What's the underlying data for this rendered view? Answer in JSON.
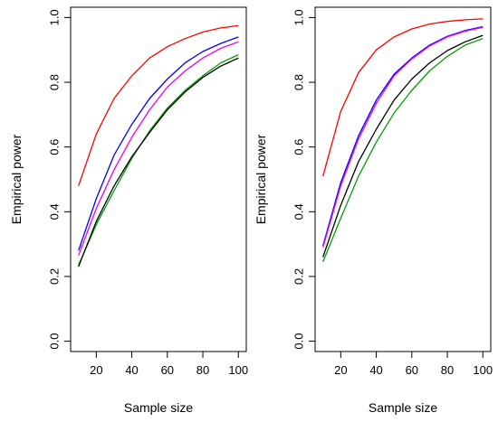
{
  "chart_data": [
    {
      "type": "line",
      "title": "",
      "xlabel": "Sample size",
      "ylabel": "Empirical power",
      "xlim": [
        10,
        100
      ],
      "ylim": [
        0.0,
        1.0
      ],
      "xticks": [
        20,
        40,
        60,
        80,
        100
      ],
      "yticks": [
        0.0,
        0.2,
        0.4,
        0.6,
        0.8,
        1.0
      ],
      "ytick_labels": [
        "0.0",
        "0.2",
        "0.4",
        "0.6",
        "0.8",
        "1.0"
      ],
      "grid": false,
      "x": [
        10,
        20,
        30,
        40,
        50,
        60,
        70,
        80,
        90,
        100
      ],
      "series": [
        {
          "color": "#ff0000",
          "values": [
            0.48,
            0.64,
            0.75,
            0.82,
            0.875,
            0.91,
            0.935,
            0.955,
            0.968,
            0.975
          ]
        },
        {
          "color": "#0000ff",
          "values": [
            0.28,
            0.44,
            0.575,
            0.67,
            0.75,
            0.81,
            0.86,
            0.895,
            0.92,
            0.94
          ]
        },
        {
          "color": "#ee00ee",
          "values": [
            0.265,
            0.41,
            0.53,
            0.63,
            0.715,
            0.785,
            0.835,
            0.875,
            0.905,
            0.925
          ]
        },
        {
          "color": "#00a000",
          "values": [
            0.235,
            0.36,
            0.465,
            0.565,
            0.65,
            0.72,
            0.775,
            0.82,
            0.86,
            0.885
          ]
        },
        {
          "color": "#000000",
          "values": [
            0.23,
            0.37,
            0.48,
            0.57,
            0.645,
            0.715,
            0.77,
            0.815,
            0.85,
            0.875
          ]
        }
      ]
    },
    {
      "type": "line",
      "title": "",
      "xlabel": "Sample size",
      "ylabel": "Empirical power",
      "xlim": [
        10,
        100
      ],
      "ylim": [
        0.0,
        1.0
      ],
      "xticks": [
        20,
        40,
        60,
        80,
        100
      ],
      "yticks": [
        0.0,
        0.2,
        0.4,
        0.6,
        0.8,
        1.0
      ],
      "ytick_labels": [
        "0.0",
        "0.2",
        "0.4",
        "0.6",
        "0.8",
        "1.0"
      ],
      "grid": false,
      "x": [
        10,
        20,
        30,
        40,
        50,
        60,
        70,
        80,
        90,
        100
      ],
      "series": [
        {
          "color": "#ff0000",
          "values": [
            0.51,
            0.71,
            0.83,
            0.9,
            0.94,
            0.965,
            0.98,
            0.988,
            0.993,
            0.996
          ]
        },
        {
          "color": "#0000ff",
          "values": [
            0.295,
            0.49,
            0.635,
            0.745,
            0.825,
            0.875,
            0.915,
            0.942,
            0.96,
            0.972
          ]
        },
        {
          "color": "#ee00ee",
          "values": [
            0.29,
            0.48,
            0.625,
            0.735,
            0.82,
            0.872,
            0.912,
            0.94,
            0.958,
            0.97
          ]
        },
        {
          "color": "#000000",
          "values": [
            0.26,
            0.42,
            0.555,
            0.655,
            0.745,
            0.81,
            0.86,
            0.898,
            0.925,
            0.945
          ]
        },
        {
          "color": "#00a000",
          "values": [
            0.245,
            0.38,
            0.51,
            0.615,
            0.705,
            0.775,
            0.835,
            0.88,
            0.915,
            0.935
          ]
        }
      ]
    }
  ]
}
